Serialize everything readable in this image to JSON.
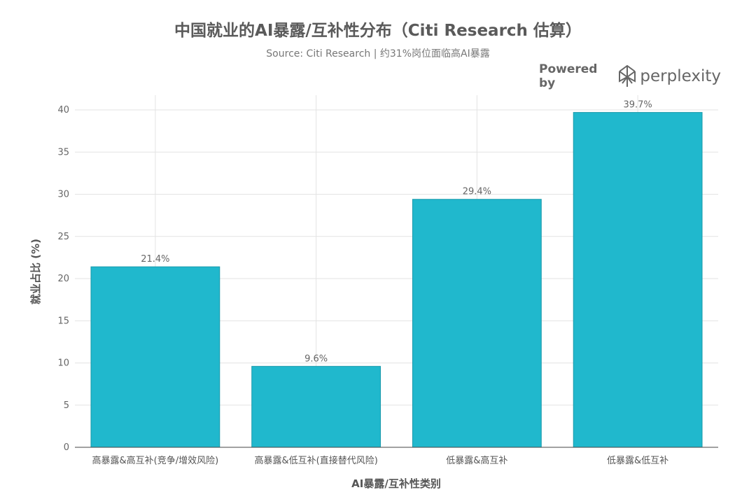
{
  "branding": {
    "powered_by": "Powered by",
    "brand": "perplexity"
  },
  "chart_data": {
    "type": "bar",
    "title": "中国就业的AI暴露/互补性分布（Citi Research 估算）",
    "subtitle": "Source: Citi Research | 约31%岗位面临高AI暴露",
    "xlabel": "AI暴露/互补性类别",
    "ylabel": "就业占比 (%)",
    "categories": [
      "高暴露&高互补(竞争/增效风险)",
      "高暴露&低互补(直接替代风险)",
      "低暴露&高互补",
      "低暴露&低互补"
    ],
    "values": [
      21.4,
      9.6,
      29.4,
      39.7
    ],
    "data_labels": [
      "21.4%",
      "9.6%",
      "29.4%",
      "39.7%"
    ],
    "ylim": [
      0,
      40
    ],
    "yticks": [
      0,
      5,
      10,
      15,
      20,
      25,
      30,
      35,
      40
    ],
    "grid": true,
    "bar_color": "#20b8cd",
    "bar_edge_color": "#1a9aab"
  }
}
